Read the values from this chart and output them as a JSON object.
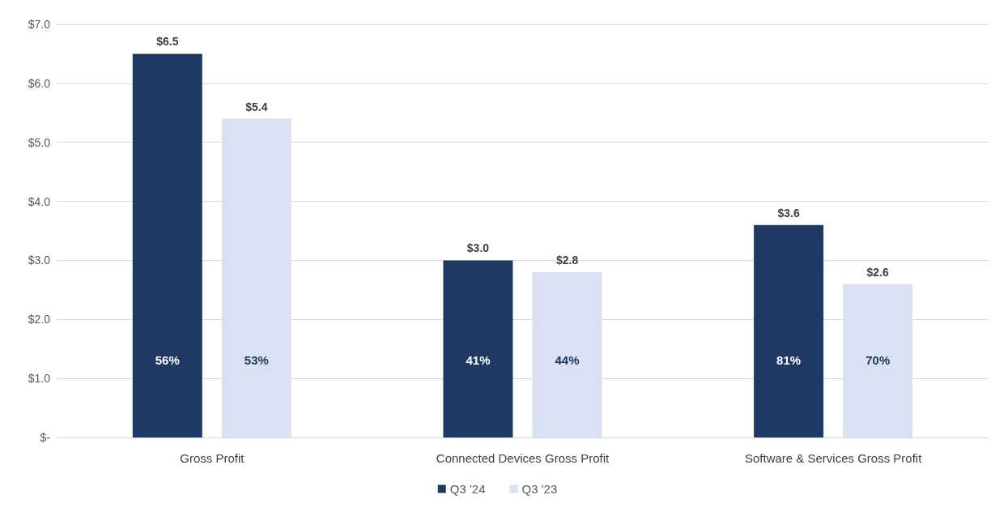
{
  "chart_data": {
    "type": "bar",
    "categories": [
      "Gross Profit",
      "Connected Devices Gross Profit",
      "Software & Services Gross Profit"
    ],
    "series": [
      {
        "name": "Q3 '24",
        "color": "#1f3864",
        "values": [
          6.5,
          3.0,
          3.6
        ],
        "value_labels": [
          "$6.5",
          "$3.0",
          "$3.6"
        ]
      },
      {
        "name": "Q3 '23",
        "color": "#d9e1f2",
        "values": [
          5.4,
          2.8,
          2.6
        ],
        "value_labels": [
          "$5.4",
          "$2.8",
          "$2.6"
        ]
      }
    ],
    "ylim": [
      0,
      7
    ],
    "yticks": [
      {
        "value": 0,
        "label": "$-"
      },
      {
        "value": 1,
        "label": "$1.0"
      },
      {
        "value": 2,
        "label": "$2.0"
      },
      {
        "value": 3,
        "label": "$3.0"
      },
      {
        "value": 4,
        "label": "$4.0"
      },
      {
        "value": 5,
        "label": "$5.0"
      },
      {
        "value": 6,
        "label": "$6.0"
      },
      {
        "value": 7,
        "label": "$7.0"
      }
    ],
    "grid": "y",
    "legend": "bottom",
    "annotations": [
      "56%",
      "53%",
      "41%",
      "44%",
      "81%",
      "70%"
    ]
  }
}
